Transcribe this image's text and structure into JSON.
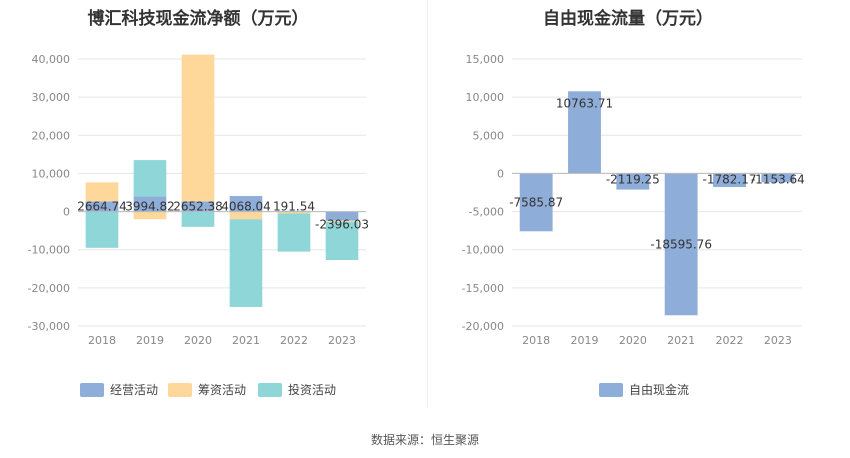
{
  "source_label": "数据来源：恒生聚源",
  "colors": {
    "operating": "#8eadd9",
    "financing": "#fdd89a",
    "investing": "#8ed6d8",
    "free_cash_flow": "#8eadd9",
    "grid": "#e6e6e6",
    "axis": "#bbbbbb"
  },
  "chart_data": [
    {
      "type": "bar",
      "title": "博汇科技现金流净额（万元）",
      "categories": [
        "2018",
        "2019",
        "2020",
        "2021",
        "2022",
        "2023"
      ],
      "ylim": [
        -30000,
        40000
      ],
      "yticks": [
        40000,
        30000,
        20000,
        10000,
        0,
        -10000,
        -20000,
        -30000
      ],
      "ytick_labels": [
        "40,000",
        "30,000",
        "20,000",
        "10,000",
        "0",
        "-10,000",
        "-20,000",
        "-30,000"
      ],
      "series": [
        {
          "name": "经营活动",
          "values": [
            2664.74,
            3994.82,
            2652.38,
            4068.04,
            191.54,
            -2396.03
          ]
        },
        {
          "name": "筹资活动",
          "values": [
            5000,
            -2000,
            38500,
            -2000,
            -500,
            -300
          ]
        },
        {
          "name": "投资活动",
          "values": [
            -9500,
            9500,
            -4000,
            -23000,
            -10000,
            -10000
          ]
        }
      ],
      "data_labels": [
        "2664.74",
        "3994.82",
        "2652.38",
        "4068.04",
        "191.54",
        "-2396.03"
      ],
      "legend": "bottom",
      "grid": true
    },
    {
      "type": "bar",
      "title": "自由现金流量（万元）",
      "categories": [
        "2018",
        "2019",
        "2020",
        "2021",
        "2022",
        "2023"
      ],
      "ylim": [
        -20000,
        15000
      ],
      "yticks": [
        15000,
        10000,
        5000,
        0,
        -5000,
        -10000,
        -15000,
        -20000
      ],
      "ytick_labels": [
        "15,000",
        "10,000",
        "5,000",
        "0",
        "-5,000",
        "-10,000",
        "-15,000",
        "-20,000"
      ],
      "series": [
        {
          "name": "自由现金流",
          "values": [
            -7585.87,
            10763.71,
            -2119.25,
            -18595.76,
            -1782.17,
            -1153.64
          ]
        }
      ],
      "data_labels": [
        "-7585.87",
        "10763.71",
        "-2119.25",
        "-18595.76",
        "-1782.17",
        "-1153.64"
      ],
      "legend": "bottom",
      "grid": true
    }
  ]
}
